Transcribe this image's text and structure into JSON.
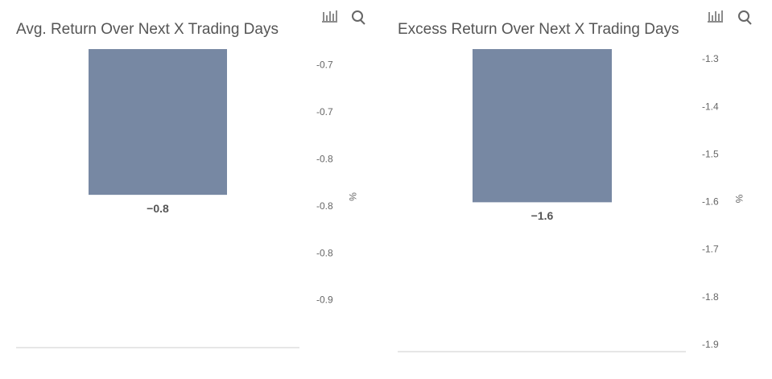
{
  "chart_data": [
    {
      "type": "bar",
      "title": "Avg. Return Over Next X Trading Days",
      "y_label": "%",
      "values": [
        -0.79
      ],
      "value_labels": [
        "−0.8"
      ],
      "color": "#7788a3",
      "ylim": [
        -0.92,
        -0.666
      ],
      "yticks": [
        {
          "value": -0.68,
          "label": "-0.7"
        },
        {
          "value": -0.72,
          "label": "-0.7"
        },
        {
          "value": -0.76,
          "label": "-0.8"
        },
        {
          "value": -0.8,
          "label": "-0.8"
        },
        {
          "value": -0.84,
          "label": "-0.8"
        },
        {
          "value": -0.88,
          "label": "-0.9"
        }
      ]
    },
    {
      "type": "bar",
      "title": "Excess Return Over Next X Trading Days",
      "y_label": "%",
      "values": [
        -1.6
      ],
      "value_labels": [
        "−1.6"
      ],
      "color": "#7788a3",
      "ylim": [
        -1.914,
        -1.278
      ],
      "yticks": [
        -1.3,
        -1.4,
        -1.5,
        -1.6,
        -1.7,
        -1.8,
        -1.9
      ]
    }
  ]
}
